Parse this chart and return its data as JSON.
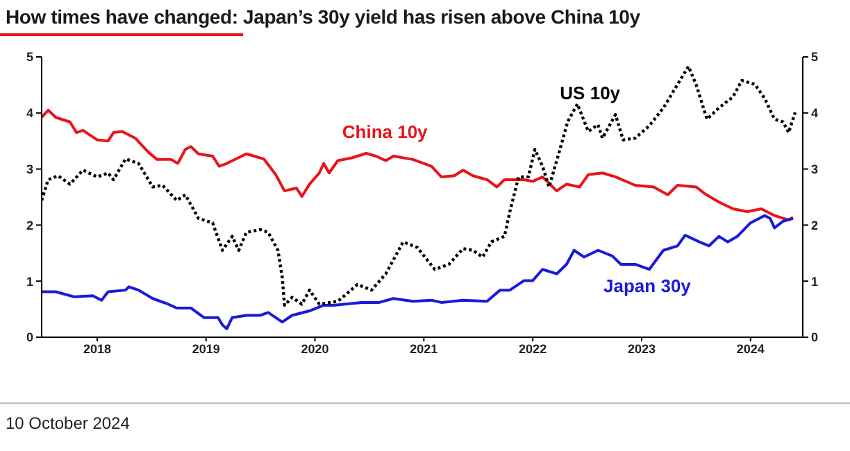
{
  "chart_data": {
    "type": "line",
    "title": "How times have changed: Japan’s 30y yield has risen above China 10y",
    "annotations": [
      "10 October 2024"
    ],
    "xlim": [
      2017.99,
      2024.98
    ],
    "xticks": [
      {
        "value": 2018.5,
        "label": "2018"
      },
      {
        "value": 2019.5,
        "label": "2019"
      },
      {
        "value": 2020.5,
        "label": "2020"
      },
      {
        "value": 2021.5,
        "label": "2021"
      },
      {
        "value": 2022.5,
        "label": "2022"
      },
      {
        "value": 2023.5,
        "label": "2023"
      },
      {
        "value": 2024.5,
        "label": "2024"
      }
    ],
    "ylim": [
      0,
      5
    ],
    "yticks": [
      0,
      1,
      2,
      3,
      4,
      5
    ],
    "y2lim": [
      0,
      5
    ],
    "y2ticks": [
      0,
      1,
      2,
      3,
      4,
      5
    ],
    "grid": false,
    "legend": false,
    "marker": "none",
    "series": [
      {
        "name": "China 10y",
        "color": "#e8141b",
        "line_style": "solid",
        "x": [
          2017.99,
          2018.05,
          2018.12,
          2018.25,
          2018.31,
          2018.37,
          2018.5,
          2018.6,
          2018.65,
          2018.73,
          2018.85,
          2018.97,
          2019.05,
          2019.18,
          2019.24,
          2019.31,
          2019.36,
          2019.43,
          2019.56,
          2019.62,
          2019.69,
          2019.87,
          2020.03,
          2020.14,
          2020.22,
          2020.33,
          2020.38,
          2020.45,
          2020.54,
          2020.58,
          2020.63,
          2020.71,
          2020.84,
          2020.97,
          2021.06,
          2021.15,
          2021.22,
          2021.4,
          2021.57,
          2021.66,
          2021.78,
          2021.86,
          2021.95,
          2022.08,
          2022.17,
          2022.24,
          2022.42,
          2022.5,
          2022.59,
          2022.72,
          2022.81,
          2022.93,
          2023.01,
          2023.14,
          2023.26,
          2023.44,
          2023.61,
          2023.74,
          2023.83,
          2024.0,
          2024.08,
          2024.21,
          2024.34,
          2024.47,
          2024.6,
          2024.72,
          2024.85,
          2024.89
        ],
        "values": [
          3.92,
          4.05,
          3.92,
          3.84,
          3.65,
          3.69,
          3.52,
          3.5,
          3.65,
          3.67,
          3.55,
          3.3,
          3.17,
          3.17,
          3.1,
          3.35,
          3.4,
          3.27,
          3.23,
          3.05,
          3.1,
          3.27,
          3.18,
          2.9,
          2.61,
          2.66,
          2.51,
          2.73,
          2.93,
          3.1,
          2.93,
          3.15,
          3.2,
          3.28,
          3.23,
          3.15,
          3.23,
          3.17,
          3.05,
          2.86,
          2.88,
          2.98,
          2.88,
          2.81,
          2.68,
          2.81,
          2.81,
          2.78,
          2.86,
          2.61,
          2.73,
          2.68,
          2.9,
          2.93,
          2.86,
          2.71,
          2.68,
          2.54,
          2.71,
          2.68,
          2.56,
          2.41,
          2.29,
          2.24,
          2.29,
          2.17,
          2.09,
          2.14
        ]
      },
      {
        "name": "Japan 30y",
        "color": "#1a1adc",
        "line_style": "solid",
        "x": [
          2017.99,
          2018.12,
          2018.29,
          2018.46,
          2018.54,
          2018.6,
          2018.76,
          2018.79,
          2018.88,
          2019.01,
          2019.14,
          2019.23,
          2019.36,
          2019.48,
          2019.61,
          2019.65,
          2019.69,
          2019.74,
          2019.87,
          2020.0,
          2020.07,
          2020.2,
          2020.29,
          2020.45,
          2020.58,
          2020.67,
          2020.93,
          2021.09,
          2021.22,
          2021.4,
          2021.57,
          2021.66,
          2021.86,
          2022.08,
          2022.2,
          2022.29,
          2022.42,
          2022.5,
          2022.59,
          2022.72,
          2022.81,
          2022.88,
          2022.97,
          2023.1,
          2023.23,
          2023.31,
          2023.44,
          2023.57,
          2023.7,
          2023.83,
          2023.9,
          2024.03,
          2024.12,
          2024.21,
          2024.29,
          2024.38,
          2024.5,
          2024.63,
          2024.68,
          2024.72,
          2024.8,
          2024.89
        ],
        "values": [
          0.81,
          0.81,
          0.72,
          0.74,
          0.66,
          0.81,
          0.84,
          0.9,
          0.84,
          0.69,
          0.6,
          0.52,
          0.52,
          0.35,
          0.35,
          0.22,
          0.15,
          0.35,
          0.39,
          0.39,
          0.44,
          0.27,
          0.39,
          0.47,
          0.57,
          0.57,
          0.62,
          0.62,
          0.69,
          0.64,
          0.66,
          0.62,
          0.66,
          0.64,
          0.84,
          0.84,
          1.01,
          1.01,
          1.21,
          1.13,
          1.3,
          1.55,
          1.43,
          1.55,
          1.45,
          1.3,
          1.3,
          1.21,
          1.55,
          1.63,
          1.82,
          1.7,
          1.63,
          1.8,
          1.7,
          1.8,
          2.04,
          2.17,
          2.12,
          1.95,
          2.07,
          2.12
        ]
      },
      {
        "name": "US 10y",
        "color": "#000000",
        "line_style": "dotted",
        "x": [
          2017.99,
          2018.05,
          2018.14,
          2018.25,
          2018.37,
          2018.5,
          2018.6,
          2018.65,
          2018.76,
          2018.88,
          2019.01,
          2019.1,
          2019.23,
          2019.31,
          2019.43,
          2019.56,
          2019.65,
          2019.74,
          2019.8,
          2019.87,
          2020.0,
          2020.07,
          2020.16,
          2020.2,
          2020.22,
          2020.29,
          2020.38,
          2020.45,
          2020.54,
          2020.71,
          2020.89,
          2021.02,
          2021.15,
          2021.31,
          2021.44,
          2021.6,
          2021.73,
          2021.86,
          2021.95,
          2022.04,
          2022.12,
          2022.24,
          2022.29,
          2022.37,
          2022.46,
          2022.52,
          2022.59,
          2022.65,
          2022.75,
          2022.82,
          2022.91,
          2023.01,
          2023.1,
          2023.14,
          2023.26,
          2023.33,
          2023.44,
          2023.57,
          2023.7,
          2023.83,
          2023.93,
          2024.0,
          2024.1,
          2024.21,
          2024.34,
          2024.42,
          2024.54,
          2024.63,
          2024.72,
          2024.8,
          2024.85,
          2024.91
        ],
        "values": [
          2.44,
          2.81,
          2.88,
          2.73,
          2.98,
          2.86,
          2.93,
          2.81,
          3.18,
          3.1,
          2.68,
          2.71,
          2.44,
          2.54,
          2.12,
          2.04,
          1.55,
          1.8,
          1.55,
          1.87,
          1.92,
          1.87,
          1.55,
          1.06,
          0.57,
          0.71,
          0.59,
          0.84,
          0.59,
          0.64,
          0.94,
          0.84,
          1.13,
          1.7,
          1.6,
          1.21,
          1.3,
          1.58,
          1.55,
          1.43,
          1.7,
          1.8,
          2.24,
          2.86,
          2.86,
          3.35,
          3.05,
          2.68,
          3.35,
          3.84,
          4.16,
          3.67,
          3.79,
          3.55,
          3.97,
          3.52,
          3.55,
          3.77,
          4.09,
          4.51,
          4.83,
          4.51,
          3.89,
          4.09,
          4.29,
          4.58,
          4.51,
          4.26,
          3.89,
          3.84,
          3.65,
          4.01
        ]
      }
    ]
  }
}
